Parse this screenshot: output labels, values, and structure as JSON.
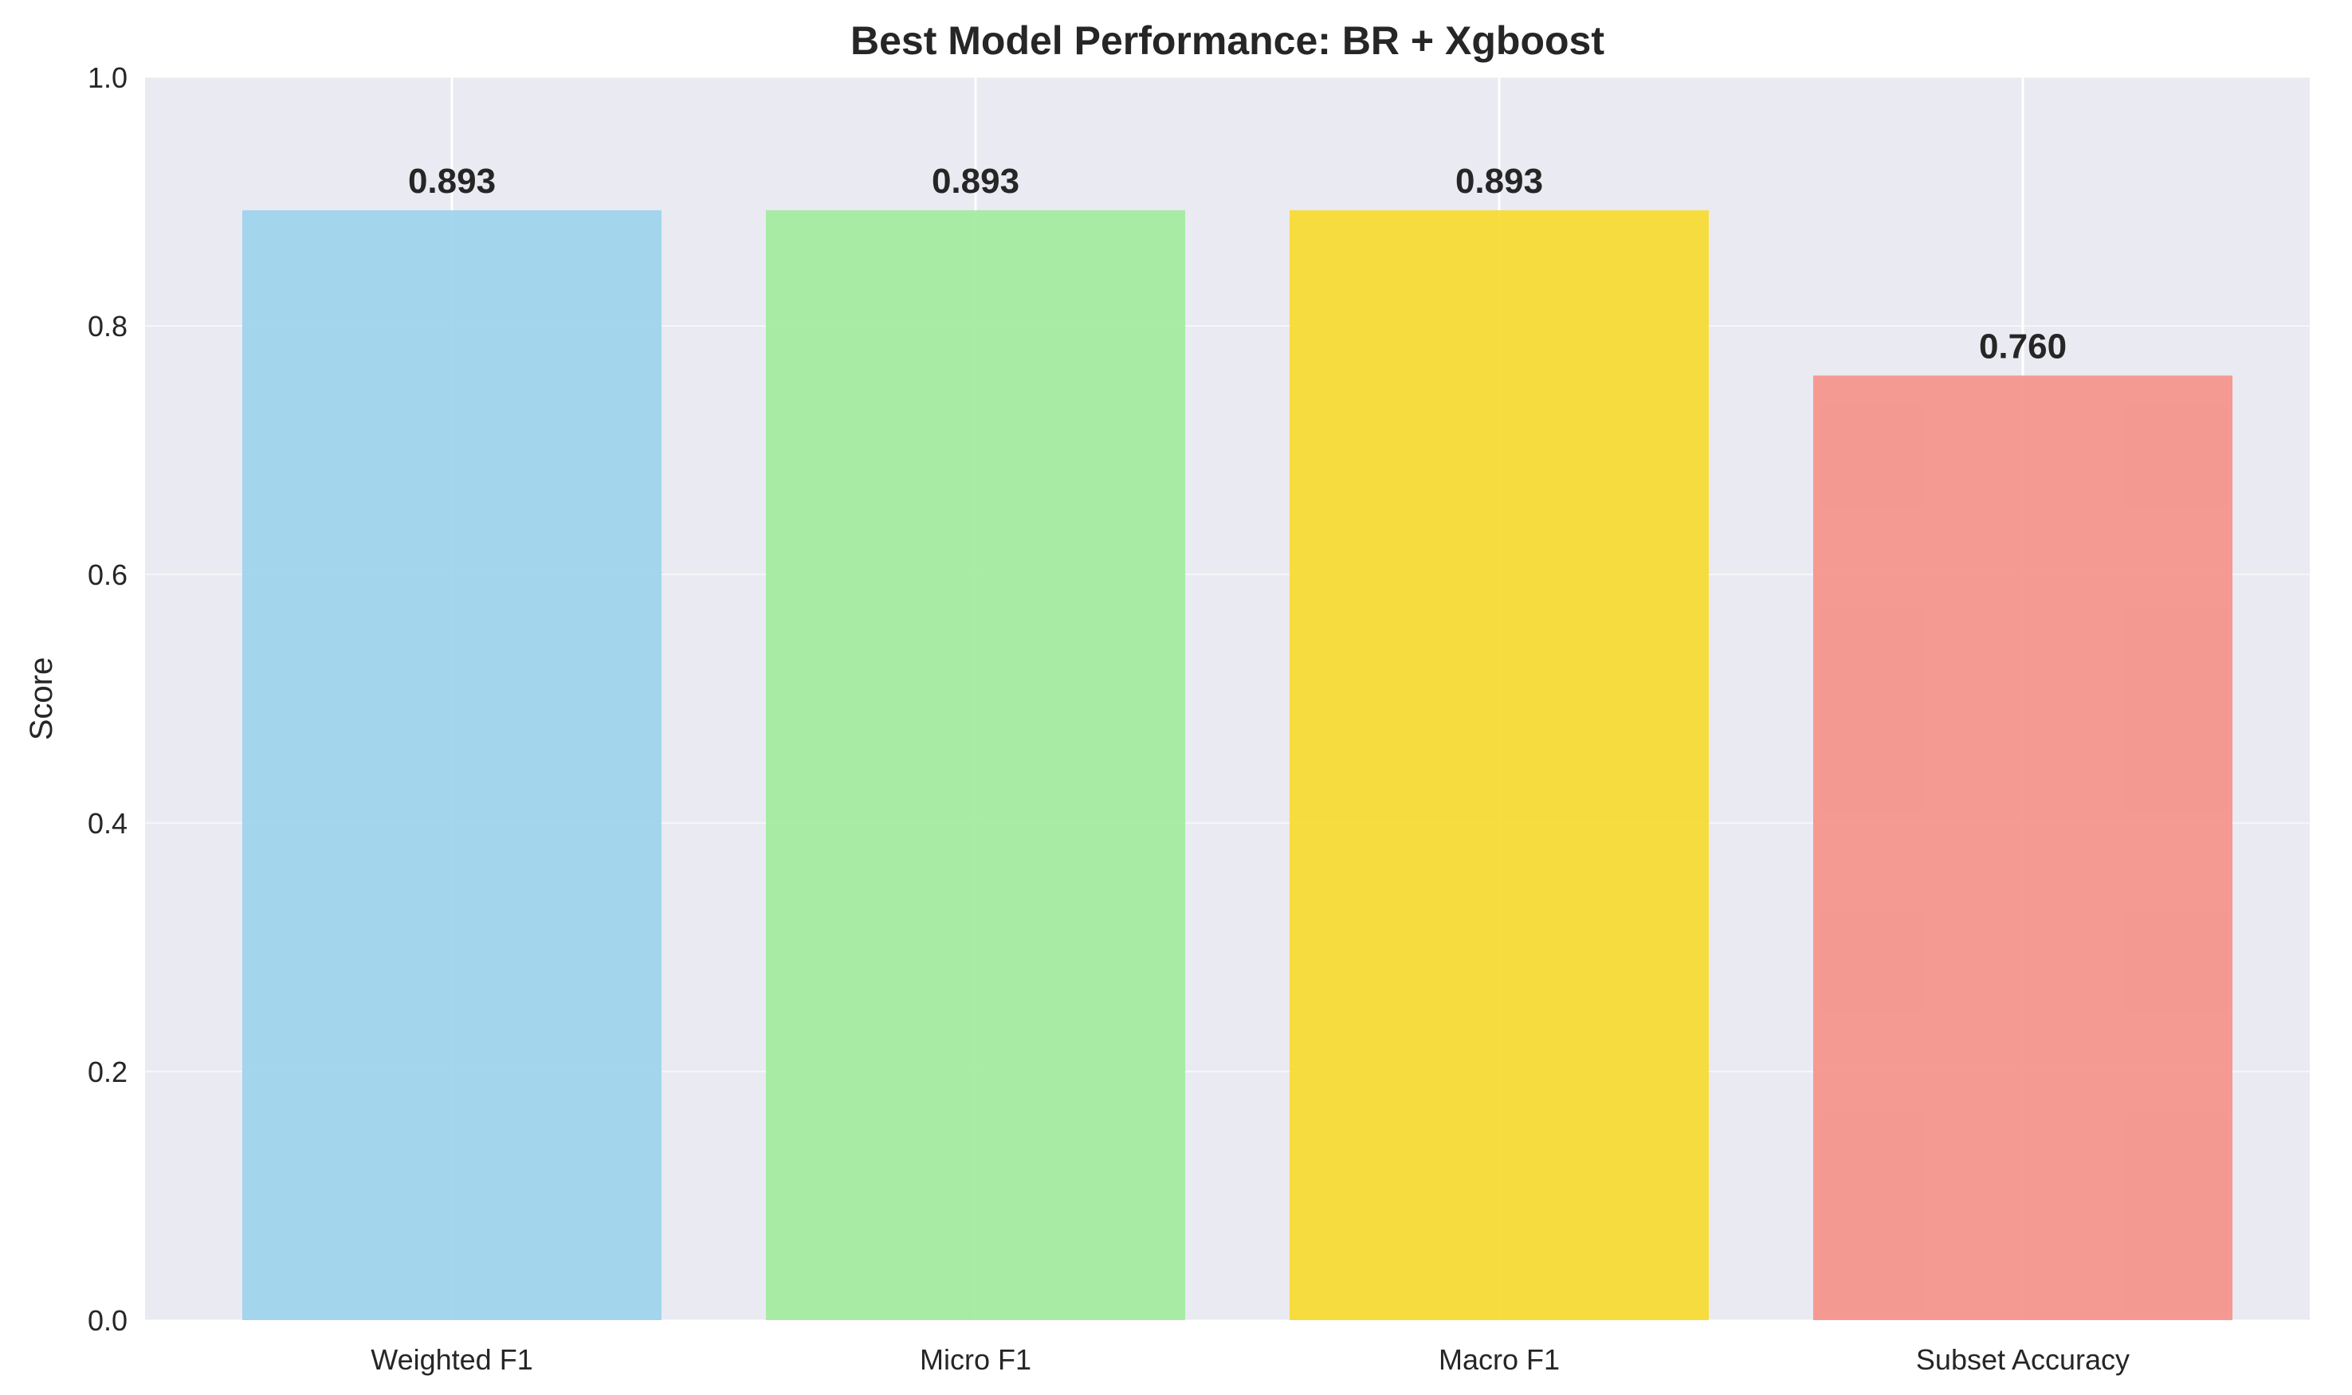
{
  "chart_data": {
    "type": "bar",
    "title": "Best Model Performance: BR + Xgboost",
    "xlabel": "",
    "ylabel": "Score",
    "categories": [
      "Weighted F1",
      "Micro F1",
      "Macro F1",
      "Subset Accuracy"
    ],
    "values": [
      0.893,
      0.893,
      0.893,
      0.76
    ],
    "value_labels": [
      "0.893",
      "0.893",
      "0.893",
      "0.760"
    ],
    "bar_colors": [
      "#9fd4ec",
      "#a3eba0",
      "#f8db36",
      "#f5958d"
    ],
    "ylim": [
      0,
      1.0
    ],
    "yticks": [
      0.0,
      0.2,
      0.4,
      0.6,
      0.8,
      1.0
    ],
    "ytick_labels": [
      "0.0",
      "0.2",
      "0.4",
      "0.6",
      "0.8",
      "1.0"
    ],
    "grid": true,
    "background_color": "#eaeaf2",
    "grid_color": "#ffffff"
  }
}
